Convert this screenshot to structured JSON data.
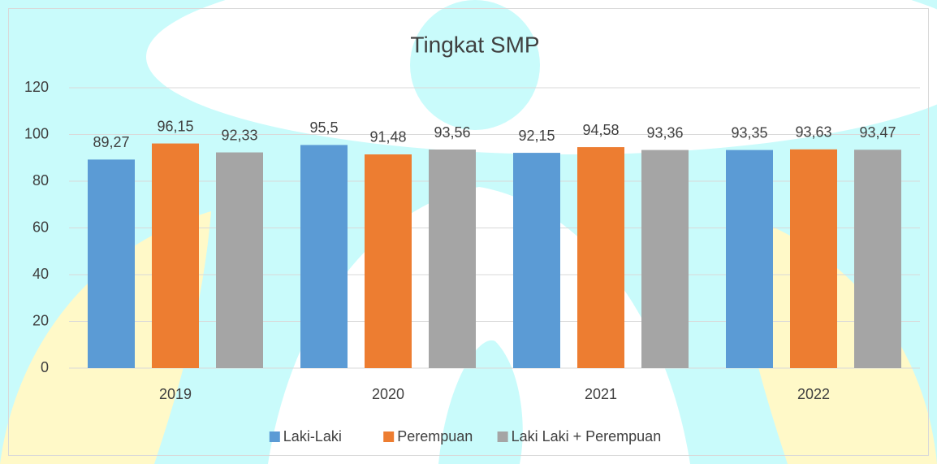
{
  "chart_data": {
    "type": "bar",
    "title": "Tingkat SMP",
    "categories": [
      "2019",
      "2020",
      "2021",
      "2022"
    ],
    "series": [
      {
        "name": "Laki-Laki",
        "color": "#5b9bd5",
        "values": [
          89.27,
          95.5,
          92.15,
          93.35
        ],
        "value_labels": [
          "89,27",
          "95,5",
          "92,15",
          "93,35"
        ]
      },
      {
        "name": "Perempuan",
        "color": "#ed7d31",
        "values": [
          96.15,
          91.48,
          94.58,
          93.63
        ],
        "value_labels": [
          "96,15",
          "91,48",
          "94,58",
          "93,63"
        ]
      },
      {
        "name": "Laki Laki + Perempuan",
        "color": "#a5a5a5",
        "values": [
          92.33,
          93.56,
          93.36,
          93.47
        ],
        "value_labels": [
          "92,33",
          "93,56",
          "93,36",
          "93,47"
        ]
      }
    ],
    "ylim": [
      0,
      120
    ],
    "yticks": [
      0,
      20,
      40,
      60,
      80,
      100,
      120
    ],
    "grid": true,
    "legend": "bottom"
  }
}
